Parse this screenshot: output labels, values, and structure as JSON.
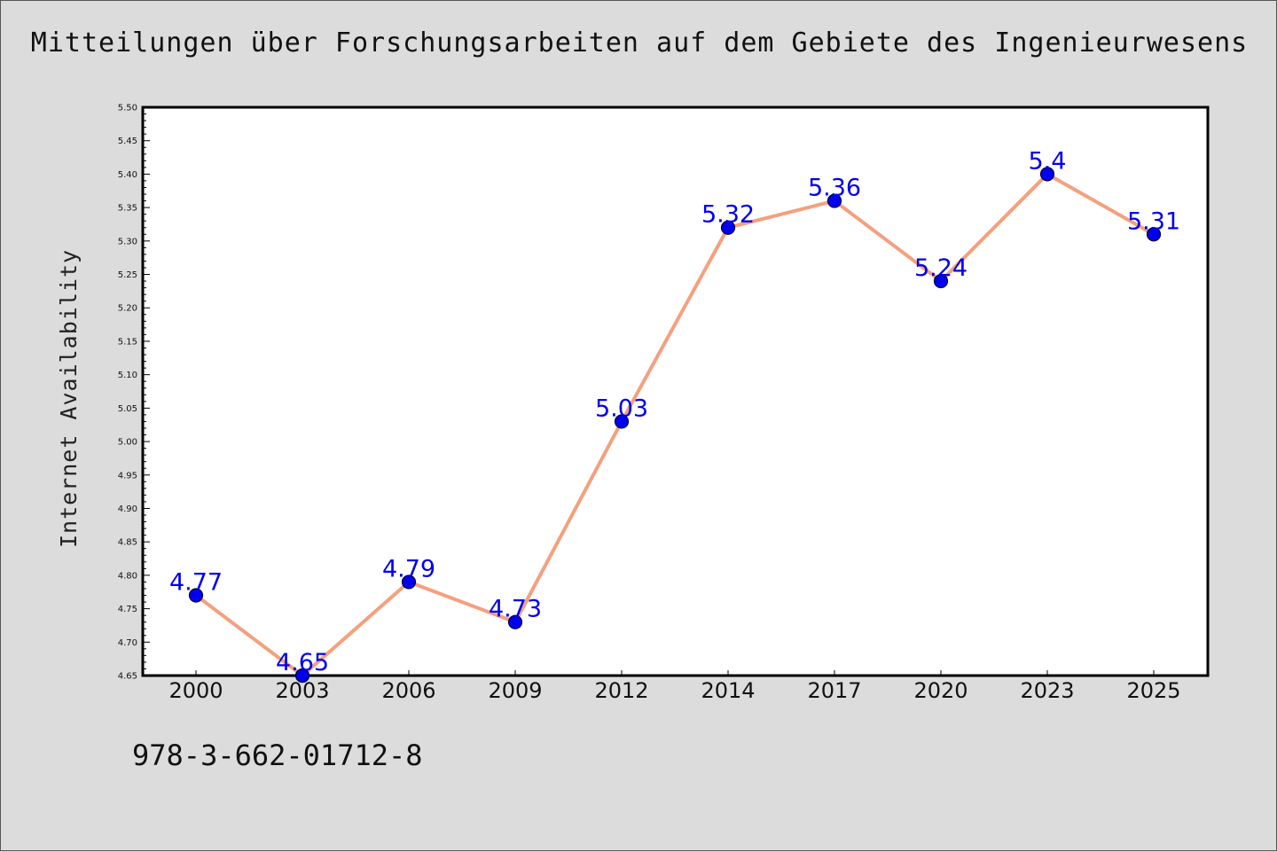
{
  "chart_data": {
    "type": "line",
    "title": "Mitteilungen über Forschungsarbeiten auf dem Gebiete des Ingenieurwesens",
    "xlabel": "",
    "ylabel": "Internet Availability",
    "categories": [
      "2000",
      "2003",
      "2006",
      "2009",
      "2012",
      "2014",
      "2017",
      "2020",
      "2023",
      "2025"
    ],
    "series": [
      {
        "values": [
          4.77,
          4.65,
          4.79,
          4.73,
          5.03,
          5.32,
          5.36,
          5.24,
          5.4,
          5.31
        ],
        "labels": [
          "4.77",
          "4.65",
          "4.79",
          "4.73",
          "5.03",
          "5.32",
          "5.36",
          "5.24",
          "5.4",
          "5.31"
        ]
      }
    ],
    "ylim": [
      4.65,
      5.5
    ],
    "yticks": [
      "4.65",
      "4.70",
      "4.75",
      "4.80",
      "4.85",
      "4.90",
      "4.95",
      "5.00",
      "5.05",
      "5.10",
      "5.15",
      "5.20",
      "5.25",
      "5.30",
      "5.35",
      "5.40",
      "5.45",
      "5.50"
    ],
    "grid": false,
    "legend": "none",
    "colors": {
      "line": "#f4a07e",
      "marker_fill": "#0000ee",
      "marker_stroke": "#000033",
      "data_label": "#0000ee",
      "background": "#dcdcdc",
      "plot_background": "#ffffff"
    }
  },
  "footer": {
    "code": "978-3-662-01712-8"
  }
}
